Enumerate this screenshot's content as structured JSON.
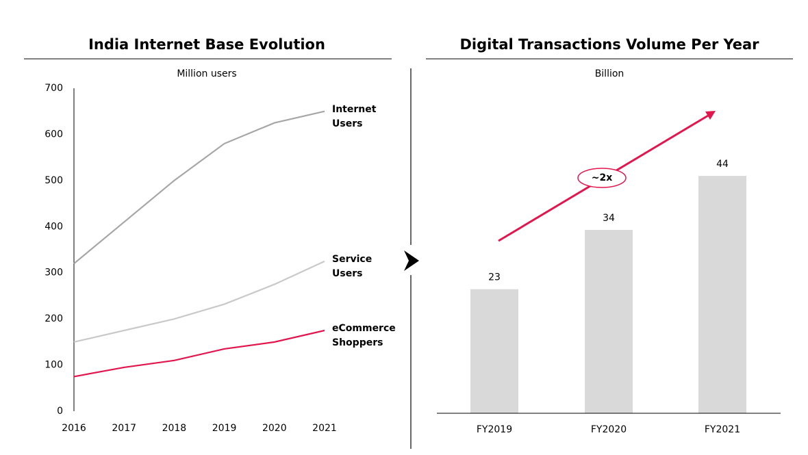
{
  "chart_data": [
    {
      "type": "line",
      "title": "India Internet Base Evolution",
      "subtitle": "Million users",
      "categories": [
        "2016",
        "2017",
        "2018",
        "2019",
        "2020",
        "2021"
      ],
      "series": [
        {
          "name": "Internet Users",
          "color": "#a6a6a6",
          "values": [
            320,
            410,
            500,
            580,
            625,
            650
          ]
        },
        {
          "name": "Service Users",
          "color": "#c9c9c9",
          "values": [
            150,
            175,
            200,
            232,
            275,
            325
          ]
        },
        {
          "name": "eCommerce Shoppers",
          "color": "#e3154d",
          "values": [
            75,
            95,
            110,
            135,
            150,
            175
          ]
        }
      ],
      "ylim": [
        0,
        700
      ],
      "yticks": [
        0,
        100,
        200,
        300,
        400,
        500,
        600,
        700
      ]
    },
    {
      "type": "bar",
      "title": "Digital Transactions Volume Per Year",
      "subtitle": "Billion",
      "categories": [
        "FY2019",
        "FY2020",
        "FY2021"
      ],
      "values": [
        23,
        34,
        44
      ],
      "color": "#d9d9d9",
      "ylim": [
        0,
        60
      ],
      "annotation": "~2x",
      "annotation_color": "#e3154d"
    }
  ]
}
